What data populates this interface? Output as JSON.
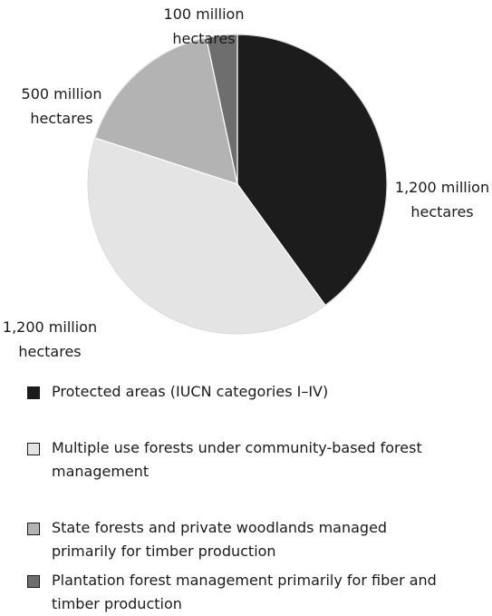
{
  "chart_data": {
    "type": "pie",
    "slices": [
      {
        "name": "Protected areas (IUCN categories I–IV)",
        "value": 1200,
        "label_lines": [
          "1,200 million",
          "hectares"
        ],
        "color": "#1c1c1c"
      },
      {
        "name": "Multiple use forests under community-based forest management",
        "value": 1200,
        "label_lines": [
          "1,200 million",
          "hectares"
        ],
        "color": "#e4e4e4"
      },
      {
        "name": "State forests and private woodlands managed primarily for timber production",
        "value": 500,
        "label_lines": [
          "500 million",
          "hectares"
        ],
        "color": "#b3b3b3"
      },
      {
        "name": "Plantation forest management primarily for fiber and timber production",
        "value": 100,
        "label_lines": [
          "100 million",
          "hectares"
        ],
        "color": "#6e6e6e"
      }
    ],
    "start": "12 o'clock",
    "direction": "clockwise"
  },
  "legend": {
    "items": [
      {
        "text": "Protected areas (IUCN categories I–IV)",
        "color": "#1c1c1c"
      },
      {
        "text": "Multiple use forests under community-based forest management",
        "color": "#e4e4e4"
      },
      {
        "text": "State forests and private woodlands managed primarily for timber production",
        "color": "#b3b3b3"
      },
      {
        "text": "Plantation forest management primarily for fiber and timber production",
        "color": "#6e6e6e"
      }
    ]
  }
}
